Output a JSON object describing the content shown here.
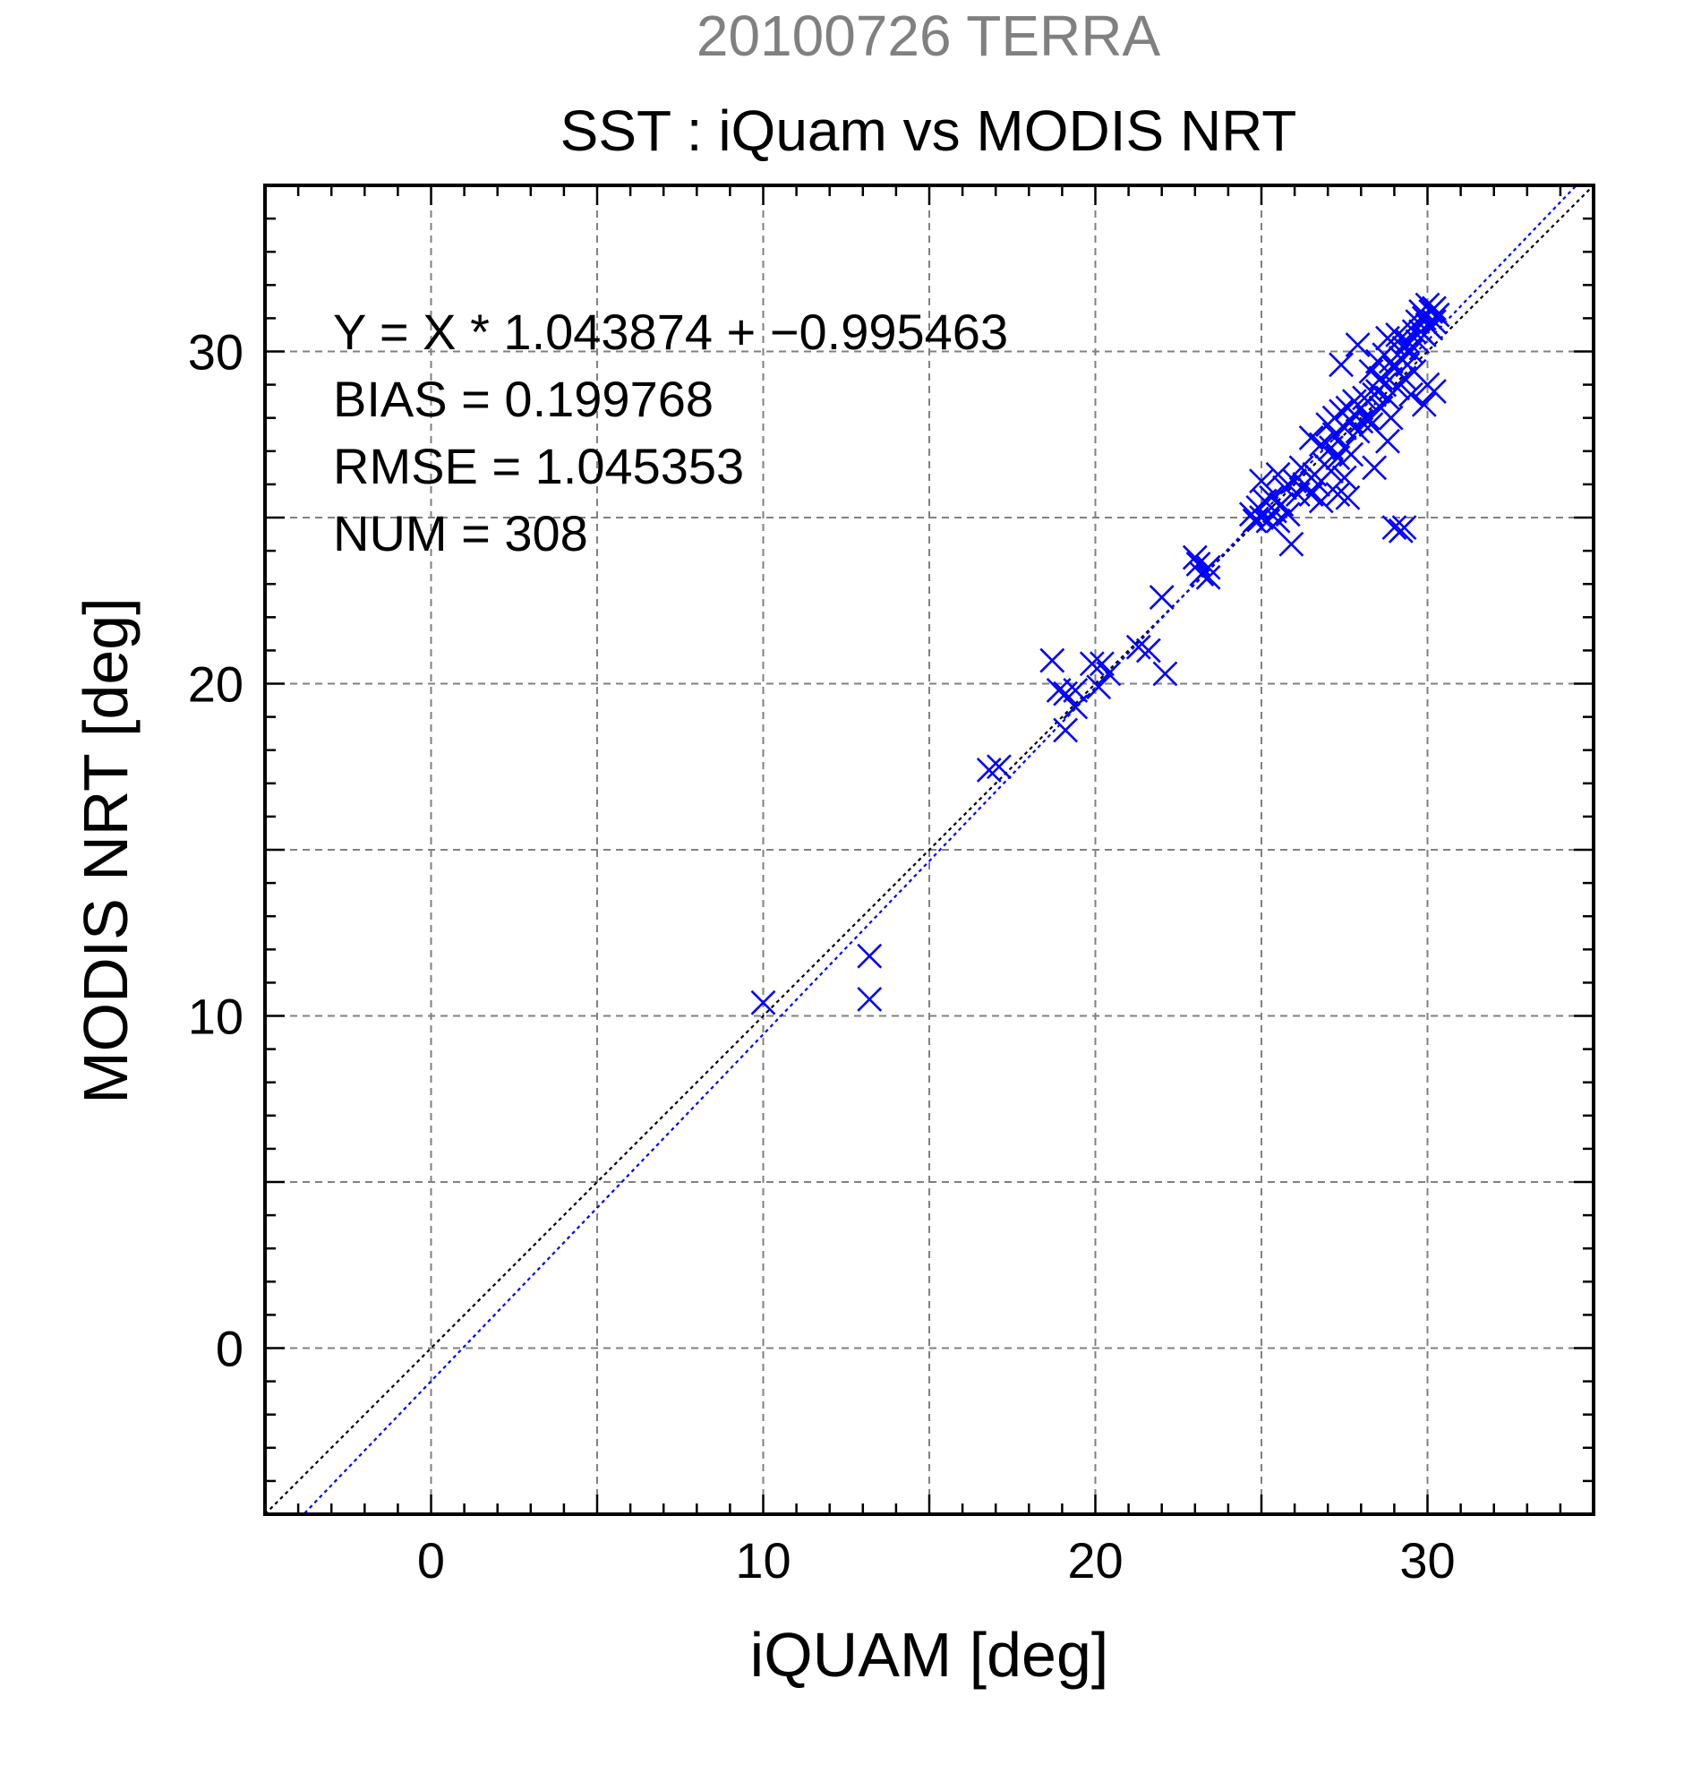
{
  "header": {
    "supertitle": "20100726 TERRA",
    "title": "SST : iQuam vs MODIS NRT"
  },
  "stats": {
    "line1": "Y = X * 1.043874 + −0.995463",
    "line2": "BIAS = 0.199768",
    "line3": "RMSE = 1.045353",
    "line4": "NUM = 308"
  },
  "colors": {
    "points": "#0000ff",
    "fit_line": "#0000ff",
    "identity_line": "#000000",
    "grid": "#808080",
    "supertitle": "#808080"
  },
  "chart_data": {
    "type": "scatter",
    "title": "SST : iQuam vs MODIS NRT",
    "xlabel": "iQUAM [deg]",
    "ylabel": "MODIS NRT [deg]",
    "xlim": [
      -5,
      35
    ],
    "ylim": [
      -5,
      35
    ],
    "xticks": [
      0,
      10,
      20,
      30
    ],
    "xtick_labels": [
      "0",
      "10",
      "20",
      "30"
    ],
    "yticks": [
      0,
      10,
      20,
      30
    ],
    "ytick_labels": [
      "0",
      "10",
      "20",
      "30"
    ],
    "grid": true,
    "marker": "x",
    "fit": {
      "slope": 1.043874,
      "intercept": -0.995463
    },
    "identity_line": true,
    "points": [
      [
        10.0,
        10.4
      ],
      [
        13.2,
        11.8
      ],
      [
        13.2,
        10.5
      ],
      [
        16.8,
        17.4
      ],
      [
        17.1,
        17.5
      ],
      [
        18.7,
        20.7
      ],
      [
        18.9,
        19.8
      ],
      [
        19.1,
        19.7
      ],
      [
        19.1,
        18.6
      ],
      [
        19.4,
        19.8
      ],
      [
        19.4,
        19.3
      ],
      [
        19.9,
        20.6
      ],
      [
        20.1,
        19.9
      ],
      [
        20.2,
        20.6
      ],
      [
        20.4,
        20.3
      ],
      [
        21.3,
        21.1
      ],
      [
        21.6,
        21.0
      ],
      [
        22.0,
        22.6
      ],
      [
        22.1,
        20.3
      ],
      [
        23.0,
        23.8
      ],
      [
        23.1,
        23.6
      ],
      [
        23.2,
        23.3
      ],
      [
        23.4,
        23.5
      ],
      [
        23.4,
        23.2
      ],
      [
        24.7,
        25.1
      ],
      [
        24.8,
        24.9
      ],
      [
        24.9,
        25.3
      ],
      [
        25.0,
        25.0
      ],
      [
        25.0,
        26.1
      ],
      [
        25.1,
        25.5
      ],
      [
        25.2,
        24.9
      ],
      [
        25.3,
        25.6
      ],
      [
        25.4,
        25.2
      ],
      [
        25.5,
        26.3
      ],
      [
        25.5,
        24.9
      ],
      [
        25.6,
        25.4
      ],
      [
        25.7,
        25.9
      ],
      [
        25.8,
        25.1
      ],
      [
        25.9,
        24.2
      ],
      [
        26.0,
        26.1
      ],
      [
        26.1,
        25.7
      ],
      [
        26.2,
        26.5
      ],
      [
        26.3,
        26.0
      ],
      [
        26.5,
        25.7
      ],
      [
        26.5,
        27.4
      ],
      [
        26.6,
        26.3
      ],
      [
        26.7,
        26.0
      ],
      [
        26.8,
        25.5
      ],
      [
        26.8,
        27.2
      ],
      [
        26.9,
        26.6
      ],
      [
        27.0,
        27.8
      ],
      [
        27.1,
        27.1
      ],
      [
        27.1,
        26.4
      ],
      [
        27.2,
        28.0
      ],
      [
        27.2,
        27.5
      ],
      [
        27.3,
        26.8
      ],
      [
        27.3,
        25.7
      ],
      [
        27.4,
        28.2
      ],
      [
        27.4,
        29.6
      ],
      [
        27.5,
        27.7
      ],
      [
        27.5,
        27.1
      ],
      [
        27.5,
        26.2
      ],
      [
        27.6,
        28.3
      ],
      [
        27.6,
        25.6
      ],
      [
        27.7,
        27.9
      ],
      [
        27.7,
        26.9
      ],
      [
        27.8,
        28.5
      ],
      [
        27.8,
        28.1
      ],
      [
        27.9,
        27.6
      ],
      [
        27.9,
        30.2
      ],
      [
        28.0,
        28.3
      ],
      [
        28.0,
        27.9
      ],
      [
        28.1,
        28.6
      ],
      [
        28.2,
        28.0
      ],
      [
        28.3,
        29.4
      ],
      [
        28.3,
        27.8
      ],
      [
        28.4,
        28.7
      ],
      [
        28.4,
        26.5
      ],
      [
        28.5,
        29.7
      ],
      [
        28.5,
        28.8
      ],
      [
        28.6,
        29.2
      ],
      [
        28.6,
        28.3
      ],
      [
        28.7,
        29.9
      ],
      [
        28.7,
        29.0
      ],
      [
        28.8,
        30.4
      ],
      [
        28.8,
        28.6
      ],
      [
        28.8,
        27.3
      ],
      [
        28.9,
        29.7
      ],
      [
        28.9,
        28.0
      ],
      [
        29.0,
        30.2
      ],
      [
        29.0,
        29.5
      ],
      [
        29.0,
        24.7
      ],
      [
        29.1,
        30.5
      ],
      [
        29.1,
        28.9
      ],
      [
        29.2,
        29.8
      ],
      [
        29.2,
        24.6
      ],
      [
        29.3,
        30.1
      ],
      [
        29.3,
        29.2
      ],
      [
        29.3,
        24.7
      ],
      [
        29.4,
        30.3
      ],
      [
        29.4,
        29.6
      ],
      [
        29.5,
        30.0
      ],
      [
        29.5,
        28.7
      ],
      [
        29.6,
        30.6
      ],
      [
        29.6,
        29.4
      ],
      [
        29.7,
        30.9
      ],
      [
        29.7,
        30.3
      ],
      [
        29.8,
        31.2
      ],
      [
        29.8,
        30.6
      ],
      [
        29.9,
        31.0
      ],
      [
        29.9,
        30.5
      ],
      [
        29.9,
        28.4
      ],
      [
        30.0,
        31.4
      ],
      [
        30.0,
        30.8
      ],
      [
        30.0,
        29.0
      ],
      [
        30.1,
        31.2
      ],
      [
        30.1,
        30.7
      ],
      [
        30.2,
        31.3
      ],
      [
        30.2,
        30.9
      ],
      [
        30.2,
        28.8
      ],
      [
        30.3,
        31.1
      ]
    ]
  }
}
